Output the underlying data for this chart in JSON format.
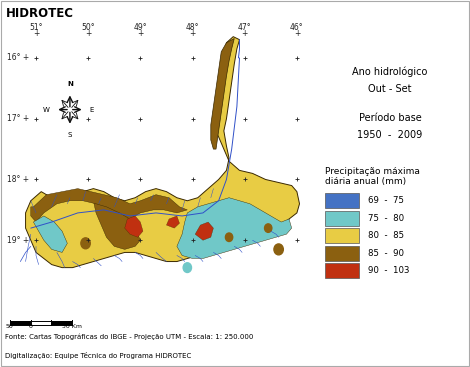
{
  "header_text": "HIDROTEC",
  "header_bg": "#b8d4e8",
  "header_text_color": "#000000",
  "ano_hidrologico_label": "Ano hidrológico",
  "ano_hidrologico_value": "Out - Set",
  "periodo_base_label": "Período base",
  "periodo_base_value": "1950  -  2009",
  "legend_title": "Precipitação máxima\ndiária anual (mm)",
  "legend_entries": [
    {
      "label": "69  -  75",
      "color": "#4472c4"
    },
    {
      "label": "75  -  80",
      "color": "#70c8c8"
    },
    {
      "label": "80  -  85",
      "color": "#e8cc44"
    },
    {
      "label": "85  -  90",
      "color": "#8b6010"
    },
    {
      "label": "90  -  103",
      "color": "#c03010"
    }
  ],
  "source_line1": "Fonte: Cartas Topográficas do IBGE - Projeção UTM - Escala: 1: 250.000",
  "source_line2": "Digitalização: Equipe Técnica do Programa HIDROTEC"
}
